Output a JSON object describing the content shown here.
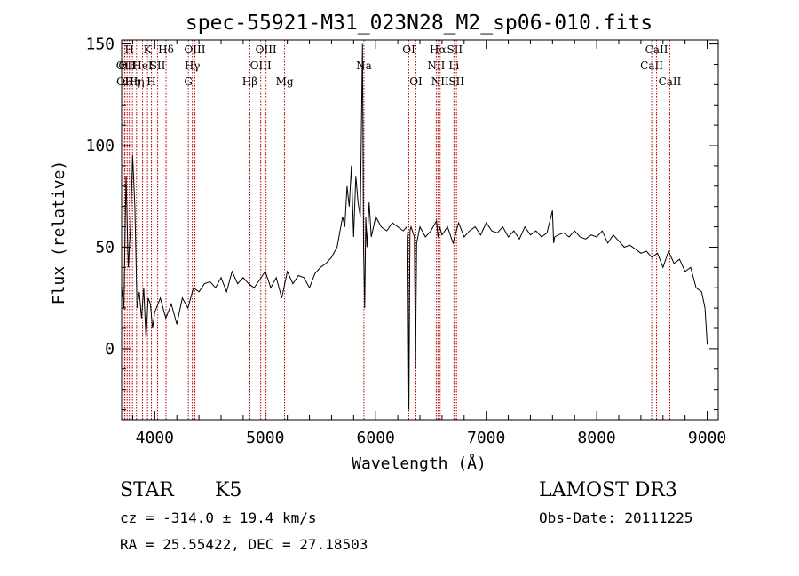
{
  "chart_data": {
    "type": "line",
    "title": "spec-55921-M31_023N28_M2_sp06-010.fits",
    "xlabel": "Wavelength (Å)",
    "ylabel": "Flux (relative)",
    "xlim": [
      3700,
      9100
    ],
    "ylim": [
      -35,
      152
    ],
    "xticks": [
      4000,
      5000,
      6000,
      7000,
      8000,
      9000
    ],
    "yticks": [
      0,
      50,
      100,
      150
    ],
    "series": [
      {
        "name": "flux",
        "x": [
          3700,
          3720,
          3740,
          3760,
          3780,
          3800,
          3820,
          3840,
          3860,
          3880,
          3900,
          3920,
          3940,
          3960,
          3980,
          4000,
          4050,
          4100,
          4150,
          4200,
          4250,
          4300,
          4350,
          4400,
          4450,
          4500,
          4550,
          4600,
          4650,
          4700,
          4750,
          4800,
          4850,
          4900,
          4950,
          5000,
          5050,
          5100,
          5150,
          5200,
          5250,
          5300,
          5350,
          5400,
          5450,
          5500,
          5550,
          5600,
          5650,
          5700,
          5720,
          5740,
          5760,
          5780,
          5800,
          5820,
          5840,
          5860,
          5880,
          5890,
          5900,
          5910,
          5920,
          5940,
          5960,
          5980,
          6000,
          6050,
          6100,
          6150,
          6200,
          6250,
          6280,
          6290,
          6300,
          6310,
          6320,
          6350,
          6360,
          6370,
          6400,
          6450,
          6500,
          6550,
          6563,
          6580,
          6600,
          6650,
          6700,
          6750,
          6800,
          6850,
          6900,
          6950,
          7000,
          7050,
          7100,
          7150,
          7200,
          7250,
          7300,
          7350,
          7400,
          7450,
          7500,
          7550,
          7600,
          7610,
          7620,
          7650,
          7700,
          7750,
          7800,
          7850,
          7900,
          7950,
          8000,
          8050,
          8100,
          8150,
          8200,
          8250,
          8300,
          8350,
          8400,
          8450,
          8500,
          8550,
          8600,
          8650,
          8700,
          8750,
          8800,
          8850,
          8900,
          8950,
          8980,
          9000
        ],
        "values": [
          30,
          20,
          85,
          40,
          60,
          95,
          70,
          20,
          28,
          15,
          30,
          5,
          25,
          22,
          10,
          18,
          25,
          15,
          22,
          12,
          25,
          20,
          30,
          28,
          32,
          33,
          30,
          35,
          28,
          38,
          32,
          35,
          32,
          30,
          34,
          38,
          30,
          35,
          25,
          38,
          32,
          36,
          35,
          30,
          37,
          40,
          42,
          45,
          50,
          65,
          60,
          80,
          70,
          90,
          55,
          85,
          72,
          65,
          150,
          50,
          20,
          65,
          50,
          72,
          55,
          60,
          65,
          60,
          58,
          62,
          60,
          58,
          60,
          55,
          -30,
          58,
          60,
          55,
          -10,
          52,
          60,
          55,
          58,
          63,
          55,
          60,
          56,
          60,
          52,
          62,
          55,
          58,
          60,
          56,
          62,
          58,
          57,
          60,
          55,
          58,
          54,
          60,
          56,
          58,
          55,
          57,
          68,
          52,
          55,
          56,
          57,
          55,
          58,
          55,
          54,
          56,
          55,
          58,
          52,
          56,
          53,
          50,
          51,
          49,
          47,
          48,
          45,
          47,
          40,
          48,
          42,
          44,
          38,
          40,
          30,
          28,
          20,
          2
        ]
      }
    ],
    "emission_lines": [
      {
        "x": 3727,
        "label": "OII",
        "row": 1
      },
      {
        "x": 3730,
        "label": "OII",
        "row": 2
      },
      {
        "x": 3750,
        "label": "OII",
        "row": 1
      },
      {
        "x": 3770,
        "label": "H",
        "row": 0
      },
      {
        "x": 3798,
        "label": "Hη",
        "row": 2
      },
      {
        "x": 3835,
        "label": "Hη",
        "row": 2
      },
      {
        "x": 3889,
        "label": "HeI",
        "row": 1
      },
      {
        "x": 3934,
        "label": "K",
        "row": 0
      },
      {
        "x": 3969,
        "label": "H",
        "row": 2
      },
      {
        "x": 4026,
        "label": "SII",
        "row": 1
      },
      {
        "x": 4102,
        "label": "Hδ",
        "row": 0
      },
      {
        "x": 4304,
        "label": "G",
        "row": 2
      },
      {
        "x": 4340,
        "label": "Hγ",
        "row": 1
      },
      {
        "x": 4363,
        "label": "OIII",
        "row": 0
      },
      {
        "x": 4861,
        "label": "Hβ",
        "row": 2
      },
      {
        "x": 4959,
        "label": "OIII",
        "row": 1
      },
      {
        "x": 5007,
        "label": "OIII",
        "row": 0
      },
      {
        "x": 5175,
        "label": "Mg",
        "row": 2
      },
      {
        "x": 5893,
        "label": "Na",
        "row": 1
      },
      {
        "x": 6300,
        "label": "OI",
        "row": 0
      },
      {
        "x": 6364,
        "label": "OI",
        "row": 2
      },
      {
        "x": 6548,
        "label": "NII",
        "row": 1
      },
      {
        "x": 6563,
        "label": "Hα",
        "row": 0
      },
      {
        "x": 6583,
        "label": "NII",
        "row": 2
      },
      {
        "x": 6708,
        "label": "Li",
        "row": 1
      },
      {
        "x": 6716,
        "label": "SII",
        "row": 0
      },
      {
        "x": 6731,
        "label": "SII",
        "row": 2
      },
      {
        "x": 8498,
        "label": "CaII",
        "row": 1
      },
      {
        "x": 8542,
        "label": "CaII",
        "row": 0
      },
      {
        "x": 8662,
        "label": "CaII",
        "row": 2
      }
    ],
    "line_color": "#c00000"
  },
  "info": {
    "class": "STAR",
    "subclass": "K5",
    "survey": "LAMOST DR3",
    "cz": "cz = -314.0 ± 19.4 km/s",
    "obs_date": "Obs-Date: 20111225",
    "coords": "RA =  25.55422, DEC =  27.18503"
  }
}
